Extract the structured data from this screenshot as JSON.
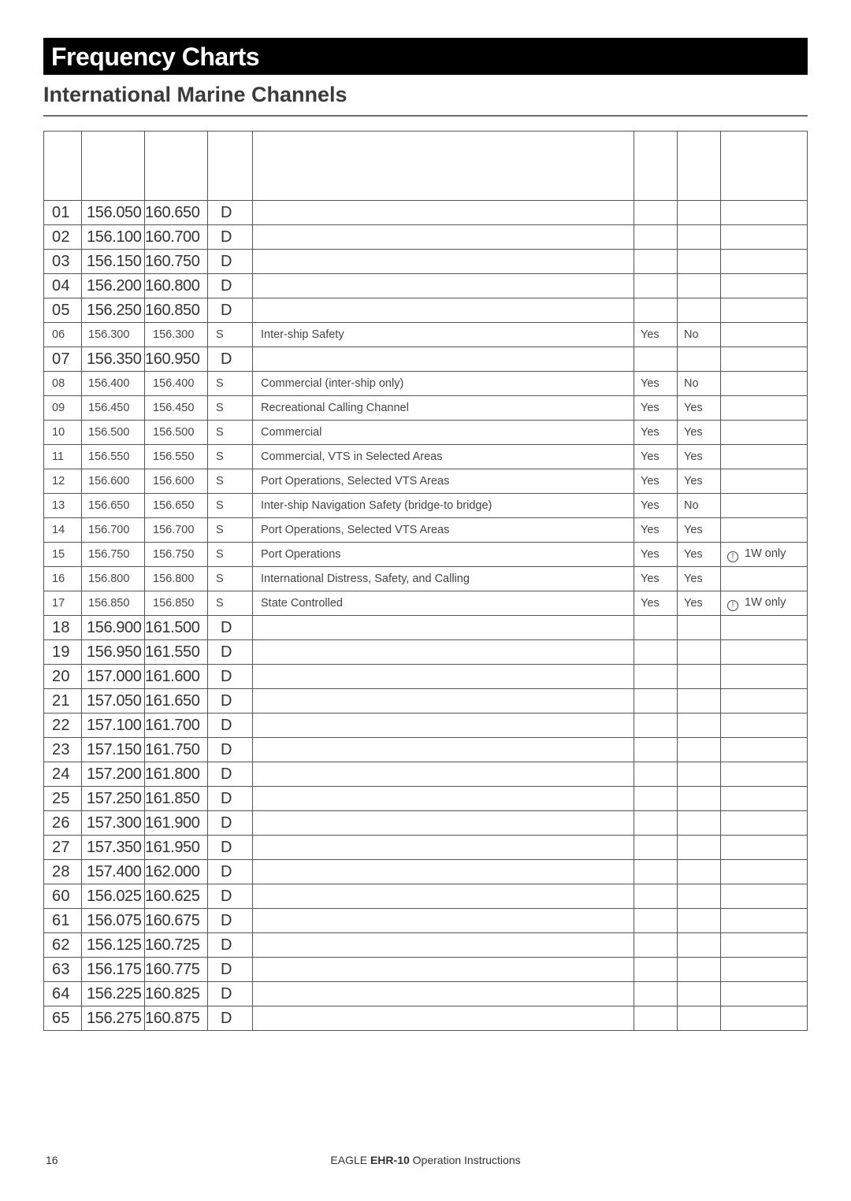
{
  "page": {
    "title": "Frequency Charts",
    "subtitle": "International Marine Channels",
    "page_number": "16",
    "footer_prefix": "EAGLE ",
    "footer_model": "EHR-10",
    "footer_suffix": "  Operation Instructions"
  },
  "table": {
    "note_icon_glyph": "!",
    "note_text": "1W only",
    "rows": [
      {
        "style": "big",
        "ch": "01",
        "f1": "156.050",
        "f2": "160.650",
        "sd": "D",
        "use": "",
        "c6": "",
        "c7": "",
        "note": ""
      },
      {
        "style": "big",
        "ch": "02",
        "f1": "156.100",
        "f2": "160.700",
        "sd": "D",
        "use": "",
        "c6": "",
        "c7": "",
        "note": ""
      },
      {
        "style": "big",
        "ch": "03",
        "f1": "156.150",
        "f2": "160.750",
        "sd": "D",
        "use": "",
        "c6": "",
        "c7": "",
        "note": ""
      },
      {
        "style": "big",
        "ch": "04",
        "f1": "156.200",
        "f2": "160.800",
        "sd": "D",
        "use": "",
        "c6": "",
        "c7": "",
        "note": ""
      },
      {
        "style": "big",
        "ch": "05",
        "f1": "156.250",
        "f2": "160.850",
        "sd": "D",
        "use": "",
        "c6": "",
        "c7": "",
        "note": ""
      },
      {
        "style": "small",
        "ch": "06",
        "f1": "156.300",
        "f2": "156.300",
        "sd": "S",
        "use": "Inter-ship Safety",
        "c6": "Yes",
        "c7": "No",
        "note": ""
      },
      {
        "style": "big",
        "ch": "07",
        "f1": "156.350",
        "f2": "160.950",
        "sd": "D",
        "use": "",
        "c6": "",
        "c7": "",
        "note": ""
      },
      {
        "style": "small",
        "ch": "08",
        "f1": "156.400",
        "f2": "156.400",
        "sd": "S",
        "use": "Commercial (inter-ship only)",
        "c6": "Yes",
        "c7": "No",
        "note": ""
      },
      {
        "style": "small",
        "ch": "09",
        "f1": "156.450",
        "f2": "156.450",
        "sd": "S",
        "use": "Recreational Calling Channel",
        "c6": "Yes",
        "c7": "Yes",
        "note": ""
      },
      {
        "style": "small",
        "ch": "10",
        "f1": "156.500",
        "f2": "156.500",
        "sd": "S",
        "use": "Commercial",
        "c6": "Yes",
        "c7": "Yes",
        "note": ""
      },
      {
        "style": "small",
        "ch": "11",
        "f1": "156.550",
        "f2": "156.550",
        "sd": "S",
        "use": "Commercial, VTS in Selected Areas",
        "c6": "Yes",
        "c7": "Yes",
        "note": ""
      },
      {
        "style": "small",
        "ch": "12",
        "f1": "156.600",
        "f2": "156.600",
        "sd": "S",
        "use": "Port Operations, Selected VTS Areas",
        "c6": "Yes",
        "c7": "Yes",
        "note": ""
      },
      {
        "style": "small",
        "ch": "13",
        "f1": "156.650",
        "f2": "156.650",
        "sd": "S",
        "use": "Inter-ship Navigation Safety (bridge-to bridge)",
        "c6": "Yes",
        "c7": "No",
        "note": ""
      },
      {
        "style": "small",
        "ch": "14",
        "f1": "156.700",
        "f2": "156.700",
        "sd": "S",
        "use": "Port Operations, Selected VTS Areas",
        "c6": "Yes",
        "c7": "Yes",
        "note": ""
      },
      {
        "style": "small",
        "ch": "15",
        "f1": "156.750",
        "f2": "156.750",
        "sd": "S",
        "use": "Port Operations",
        "c6": "Yes",
        "c7": "Yes",
        "note": "1W only"
      },
      {
        "style": "small",
        "ch": "16",
        "f1": "156.800",
        "f2": "156.800",
        "sd": "S",
        "use": "International Distress, Safety, and Calling",
        "c6": "Yes",
        "c7": "Yes",
        "note": ""
      },
      {
        "style": "small",
        "ch": "17",
        "f1": "156.850",
        "f2": "156.850",
        "sd": "S",
        "use": "State Controlled",
        "c6": "Yes",
        "c7": "Yes",
        "note": "1W only"
      },
      {
        "style": "big",
        "ch": "18",
        "f1": "156.900",
        "f2": "161.500",
        "sd": "D",
        "use": "",
        "c6": "",
        "c7": "",
        "note": ""
      },
      {
        "style": "big",
        "ch": "19",
        "f1": "156.950",
        "f2": "161.550",
        "sd": "D",
        "use": "",
        "c6": "",
        "c7": "",
        "note": ""
      },
      {
        "style": "big",
        "ch": "20",
        "f1": "157.000",
        "f2": "161.600",
        "sd": "D",
        "use": "",
        "c6": "",
        "c7": "",
        "note": ""
      },
      {
        "style": "big",
        "ch": "21",
        "f1": "157.050",
        "f2": "161.650",
        "sd": "D",
        "use": "",
        "c6": "",
        "c7": "",
        "note": ""
      },
      {
        "style": "big",
        "ch": "22",
        "f1": "157.100",
        "f2": "161.700",
        "sd": "D",
        "use": "",
        "c6": "",
        "c7": "",
        "note": ""
      },
      {
        "style": "big",
        "ch": "23",
        "f1": "157.150",
        "f2": "161.750",
        "sd": "D",
        "use": "",
        "c6": "",
        "c7": "",
        "note": ""
      },
      {
        "style": "big",
        "ch": "24",
        "f1": "157.200",
        "f2": "161.800",
        "sd": "D",
        "use": "",
        "c6": "",
        "c7": "",
        "note": ""
      },
      {
        "style": "big",
        "ch": "25",
        "f1": "157.250",
        "f2": "161.850",
        "sd": "D",
        "use": "",
        "c6": "",
        "c7": "",
        "note": ""
      },
      {
        "style": "big",
        "ch": "26",
        "f1": "157.300",
        "f2": "161.900",
        "sd": "D",
        "use": "",
        "c6": "",
        "c7": "",
        "note": ""
      },
      {
        "style": "big",
        "ch": "27",
        "f1": "157.350",
        "f2": "161.950",
        "sd": "D",
        "use": "",
        "c6": "",
        "c7": "",
        "note": ""
      },
      {
        "style": "big",
        "ch": "28",
        "f1": "157.400",
        "f2": "162.000",
        "sd": "D",
        "use": "",
        "c6": "",
        "c7": "",
        "note": ""
      },
      {
        "style": "big",
        "ch": "60",
        "f1": "156.025",
        "f2": "160.625",
        "sd": "D",
        "use": "",
        "c6": "",
        "c7": "",
        "note": ""
      },
      {
        "style": "big",
        "ch": "61",
        "f1": "156.075",
        "f2": "160.675",
        "sd": "D",
        "use": "",
        "c6": "",
        "c7": "",
        "note": ""
      },
      {
        "style": "big",
        "ch": "62",
        "f1": "156.125",
        "f2": "160.725",
        "sd": "D",
        "use": "",
        "c6": "",
        "c7": "",
        "note": ""
      },
      {
        "style": "big",
        "ch": "63",
        "f1": "156.175",
        "f2": "160.775",
        "sd": "D",
        "use": "",
        "c6": "",
        "c7": "",
        "note": ""
      },
      {
        "style": "big",
        "ch": "64",
        "f1": "156.225",
        "f2": "160.825",
        "sd": "D",
        "use": "",
        "c6": "",
        "c7": "",
        "note": ""
      },
      {
        "style": "big",
        "ch": "65",
        "f1": "156.275",
        "f2": "160.875",
        "sd": "D",
        "use": "",
        "c6": "",
        "c7": "",
        "note": ""
      }
    ]
  }
}
